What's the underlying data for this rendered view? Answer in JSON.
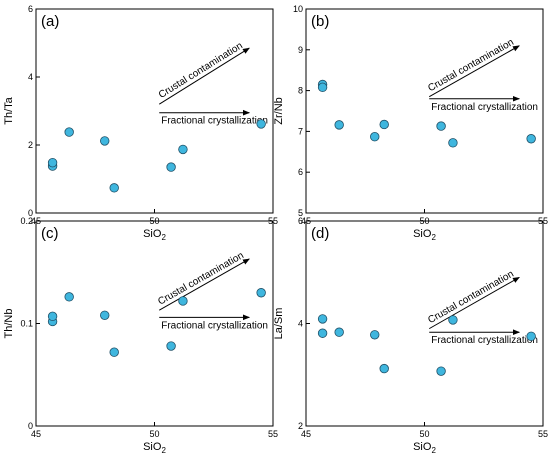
{
  "chart_data": [
    {
      "type": "scatter",
      "panel": "(a)",
      "xlabel": "SiO2",
      "ylabel": "Th/Ta",
      "xlim": [
        45,
        55
      ],
      "ylim": [
        0,
        6
      ],
      "x_ticks": [
        45,
        50,
        55
      ],
      "y_ticks": [
        0,
        2,
        4,
        6
      ],
      "points": [
        {
          "x": 45.7,
          "y": 1.38
        },
        {
          "x": 45.7,
          "y": 1.48
        },
        {
          "x": 46.4,
          "y": 2.38
        },
        {
          "x": 47.9,
          "y": 2.12
        },
        {
          "x": 48.3,
          "y": 0.74
        },
        {
          "x": 50.7,
          "y": 1.35
        },
        {
          "x": 51.2,
          "y": 1.87
        },
        {
          "x": 54.5,
          "y": 2.62
        }
      ],
      "annotations": [
        {
          "text": "Crustal contamination",
          "from": [
            50.2,
            3.2
          ],
          "to": [
            54.0,
            4.85
          ]
        },
        {
          "text": "Fractional crystallization",
          "from": [
            50.2,
            2.95
          ],
          "to": [
            54.0,
            2.95
          ]
        }
      ]
    },
    {
      "type": "scatter",
      "panel": "(b)",
      "xlabel": "SiO2",
      "ylabel": "Zr/Nb",
      "xlim": [
        45,
        55
      ],
      "ylim": [
        5,
        10
      ],
      "x_ticks": [
        45,
        50,
        55
      ],
      "y_ticks": [
        5,
        6,
        7,
        8,
        9,
        10
      ],
      "points": [
        {
          "x": 45.7,
          "y": 8.15
        },
        {
          "x": 45.7,
          "y": 8.08
        },
        {
          "x": 46.4,
          "y": 7.16
        },
        {
          "x": 47.9,
          "y": 6.87
        },
        {
          "x": 48.3,
          "y": 7.17
        },
        {
          "x": 50.7,
          "y": 7.13
        },
        {
          "x": 51.2,
          "y": 6.72
        },
        {
          "x": 54.5,
          "y": 6.82
        }
      ],
      "annotations": [
        {
          "text": "Crustal contamination",
          "from": [
            50.2,
            7.85
          ],
          "to": [
            54.0,
            9.1
          ]
        },
        {
          "text": "Fractional crystallization",
          "from": [
            50.2,
            7.8
          ],
          "to": [
            54.0,
            7.8
          ]
        }
      ]
    },
    {
      "type": "scatter",
      "panel": "(c)",
      "xlabel": "SiO2",
      "ylabel": "Th/Nb",
      "xlim": [
        45,
        55
      ],
      "ylim": [
        0,
        0.2
      ],
      "x_ticks": [
        45,
        50,
        55
      ],
      "y_ticks": [
        0,
        0.1,
        0.2
      ],
      "points": [
        {
          "x": 45.7,
          "y": 0.102
        },
        {
          "x": 45.7,
          "y": 0.107
        },
        {
          "x": 46.4,
          "y": 0.126
        },
        {
          "x": 47.9,
          "y": 0.108
        },
        {
          "x": 48.3,
          "y": 0.072
        },
        {
          "x": 50.7,
          "y": 0.078
        },
        {
          "x": 51.2,
          "y": 0.122
        },
        {
          "x": 54.5,
          "y": 0.13
        }
      ],
      "annotations": [
        {
          "text": "Crustal contamination",
          "from": [
            50.2,
            0.113
          ],
          "to": [
            54.0,
            0.163
          ]
        },
        {
          "text": "Fractional crystallization",
          "from": [
            50.2,
            0.106
          ],
          "to": [
            54.0,
            0.106
          ]
        }
      ]
    },
    {
      "type": "scatter",
      "panel": "(d)",
      "xlabel": "SiO2",
      "ylabel": "La/Sm",
      "xlim": [
        45,
        55
      ],
      "ylim": [
        2,
        6
      ],
      "x_ticks": [
        45,
        50,
        55
      ],
      "y_ticks": [
        2,
        4,
        6
      ],
      "points": [
        {
          "x": 45.7,
          "y": 4.09
        },
        {
          "x": 45.7,
          "y": 3.81
        },
        {
          "x": 46.4,
          "y": 3.83
        },
        {
          "x": 47.9,
          "y": 3.78
        },
        {
          "x": 48.3,
          "y": 3.12
        },
        {
          "x": 50.7,
          "y": 3.07
        },
        {
          "x": 51.2,
          "y": 4.07
        },
        {
          "x": 54.5,
          "y": 3.75
        }
      ],
      "annotations": [
        {
          "text": "Crustal contamination",
          "from": [
            50.2,
            3.9
          ],
          "to": [
            54.0,
            4.9
          ]
        },
        {
          "text": "Fractional crystallization",
          "from": [
            50.2,
            3.83
          ],
          "to": [
            54.0,
            3.83
          ]
        }
      ]
    }
  ],
  "colors": {
    "marker_fill": "#3fb6de",
    "marker_edge": "#1f4f66",
    "frame": "#000000"
  }
}
